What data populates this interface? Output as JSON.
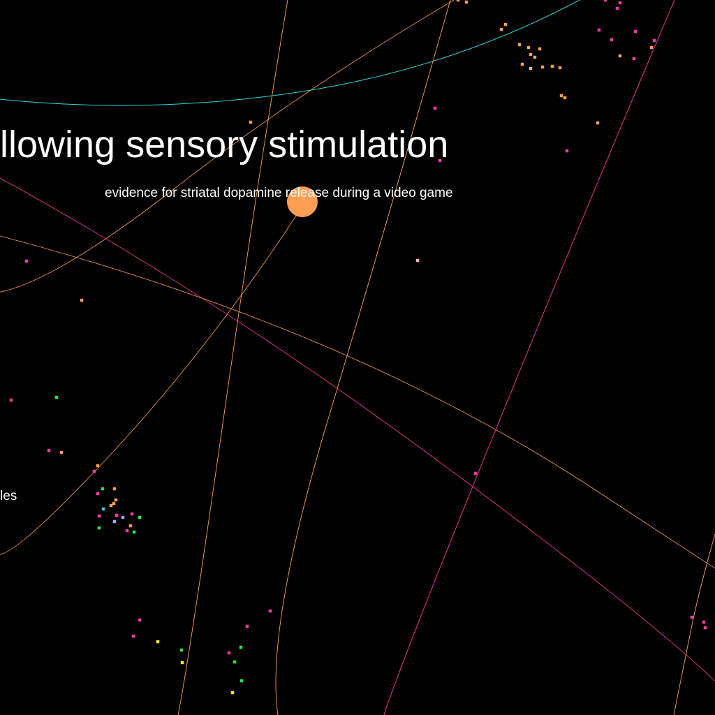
{
  "labels": {
    "main": "llowing sensory stimulation",
    "sub": "evidence for striatal dopamine release during a video game",
    "edge": "les"
  },
  "colors": {
    "background": "#000000",
    "text": "#ffffff",
    "focus_node": "#ff9e55",
    "orange": "#ffa050",
    "pink": "#ff3aa8",
    "cyan": "#2ad8e0",
    "light_orange": "#ffc080",
    "green": "#22ee44",
    "yellow": "#f4f410",
    "lavender": "#b8a0ff",
    "light_pink": "#ffb0c8"
  }
}
